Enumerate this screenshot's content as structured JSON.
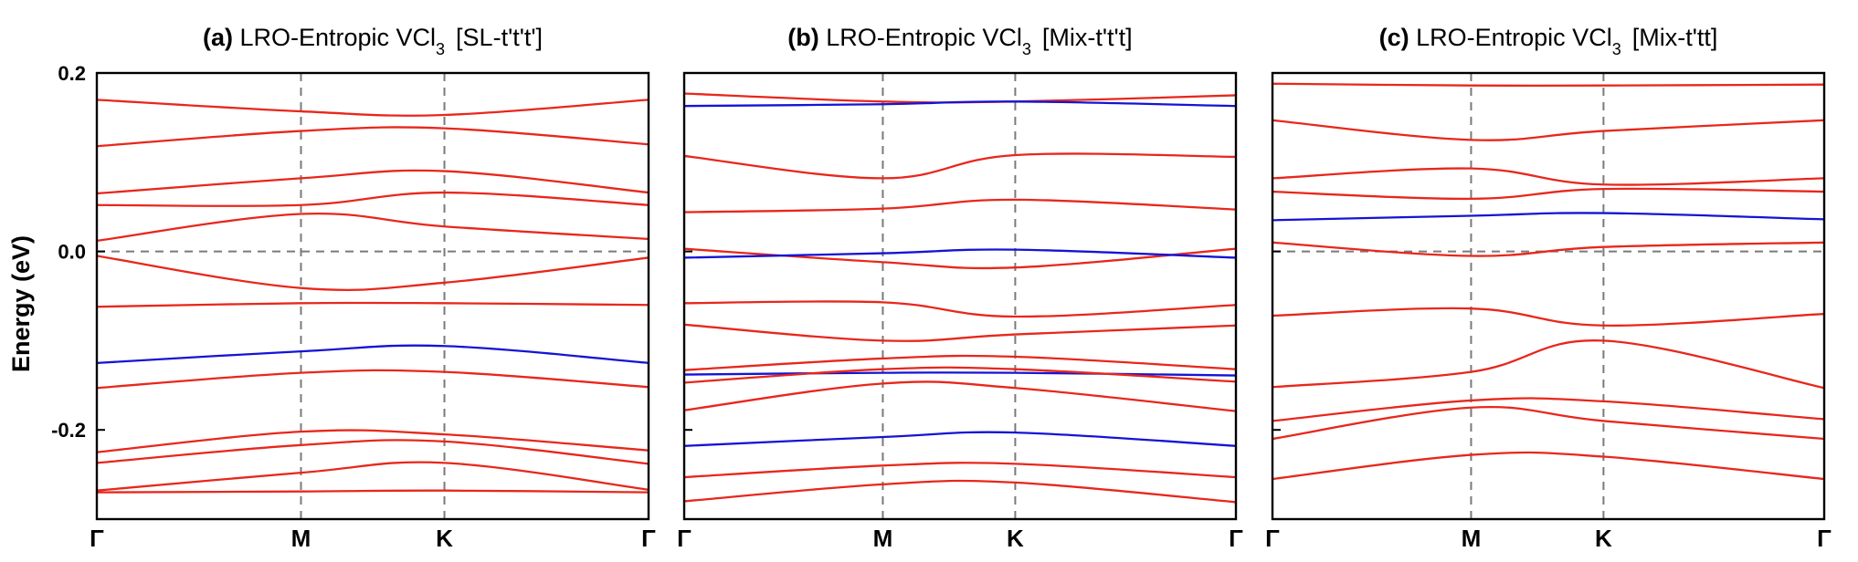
{
  "ylabel": "Energy (eV)",
  "colors": {
    "band": "#e8271c",
    "highlight": "#1414d6",
    "guide": "#7a7a7a",
    "frame": "#000000"
  },
  "chart_data": [
    {
      "type": "line",
      "panel_tag": "(a)",
      "title": "LRO-Entropic VCl",
      "title_sub": "3",
      "title_suffix": "[SL-t't't']",
      "ylabel": "Energy (eV)",
      "x_tick_labels": [
        "Γ",
        "M",
        "K",
        "Γ"
      ],
      "y_ticks": [
        {
          "value": 0.2,
          "label": "0.2"
        },
        {
          "value": 0.0,
          "label": "0.0"
        },
        {
          "value": -0.2,
          "label": "-0.2"
        }
      ],
      "ylim": [
        -0.3,
        0.2
      ],
      "fermi_level": 0.0,
      "x": [
        0,
        0.37,
        0.63,
        1
      ],
      "bands": [
        {
          "color": "red",
          "values": [
            0.17,
            0.157,
            0.153,
            0.17
          ]
        },
        {
          "color": "red",
          "values": [
            0.118,
            0.135,
            0.138,
            0.12
          ]
        },
        {
          "color": "red",
          "values": [
            0.065,
            0.082,
            0.09,
            0.066
          ]
        },
        {
          "color": "red",
          "values": [
            0.052,
            0.052,
            0.066,
            0.052
          ]
        },
        {
          "color": "red",
          "values": [
            0.012,
            0.042,
            0.028,
            0.014
          ]
        },
        {
          "color": "red",
          "values": [
            -0.005,
            -0.041,
            -0.035,
            -0.007
          ]
        },
        {
          "color": "red",
          "values": [
            -0.062,
            -0.058,
            -0.058,
            -0.06
          ]
        },
        {
          "color": "blue",
          "values": [
            -0.125,
            -0.112,
            -0.106,
            -0.125
          ]
        },
        {
          "color": "red",
          "values": [
            -0.153,
            -0.136,
            -0.135,
            -0.152
          ]
        },
        {
          "color": "red",
          "values": [
            -0.225,
            -0.202,
            -0.205,
            -0.223
          ]
        },
        {
          "color": "red",
          "values": [
            -0.237,
            -0.217,
            -0.213,
            -0.238
          ]
        },
        {
          "color": "red",
          "values": [
            -0.268,
            -0.248,
            -0.237,
            -0.267
          ]
        },
        {
          "color": "red",
          "values": [
            -0.27,
            -0.269,
            -0.268,
            -0.27
          ]
        }
      ]
    },
    {
      "type": "line",
      "panel_tag": "(b)",
      "title": "LRO-Entropic VCl",
      "title_sub": "3",
      "title_suffix": "[Mix-t't't]",
      "x_tick_labels": [
        "Γ",
        "M",
        "K",
        "Γ"
      ],
      "ylim": [
        -0.3,
        0.2
      ],
      "x": [
        0,
        0.36,
        0.6,
        1
      ],
      "bands": [
        {
          "color": "red",
          "values": [
            0.177,
            0.168,
            0.168,
            0.175
          ]
        },
        {
          "color": "blue",
          "values": [
            0.163,
            0.165,
            0.168,
            0.163
          ]
        },
        {
          "color": "red",
          "values": [
            0.107,
            0.082,
            0.108,
            0.106
          ]
        },
        {
          "color": "red",
          "values": [
            0.044,
            0.048,
            0.058,
            0.047
          ]
        },
        {
          "color": "red",
          "values": [
            0.003,
            -0.012,
            -0.018,
            0.003
          ]
        },
        {
          "color": "blue",
          "values": [
            -0.007,
            -0.002,
            0.002,
            -0.007
          ]
        },
        {
          "color": "red",
          "values": [
            -0.058,
            -0.057,
            -0.073,
            -0.06
          ]
        },
        {
          "color": "red",
          "values": [
            -0.082,
            -0.1,
            -0.093,
            -0.083
          ]
        },
        {
          "color": "red",
          "values": [
            -0.133,
            -0.12,
            -0.118,
            -0.132
          ]
        },
        {
          "color": "blue",
          "values": [
            -0.138,
            -0.136,
            -0.136,
            -0.139
          ]
        },
        {
          "color": "red",
          "values": [
            -0.147,
            -0.132,
            -0.132,
            -0.146
          ]
        },
        {
          "color": "red",
          "values": [
            -0.178,
            -0.148,
            -0.153,
            -0.179
          ]
        },
        {
          "color": "blue",
          "values": [
            -0.218,
            -0.208,
            -0.203,
            -0.218
          ]
        },
        {
          "color": "red",
          "values": [
            -0.253,
            -0.24,
            -0.238,
            -0.253
          ]
        },
        {
          "color": "red",
          "values": [
            -0.28,
            -0.261,
            -0.259,
            -0.281
          ]
        }
      ]
    },
    {
      "type": "line",
      "panel_tag": "(c)",
      "title": "LRO-Entropic VCl",
      "title_sub": "3",
      "title_suffix": "[Mix-t'tt]",
      "x_tick_labels": [
        "Γ",
        "M",
        "K",
        "Γ"
      ],
      "ylim": [
        -0.3,
        0.2
      ],
      "x": [
        0,
        0.36,
        0.6,
        1
      ],
      "bands": [
        {
          "color": "red",
          "values": [
            0.188,
            0.186,
            0.186,
            0.187
          ]
        },
        {
          "color": "red",
          "values": [
            0.147,
            0.125,
            0.135,
            0.147
          ]
        },
        {
          "color": "red",
          "values": [
            0.082,
            0.093,
            0.075,
            0.082
          ]
        },
        {
          "color": "red",
          "values": [
            0.067,
            0.059,
            0.07,
            0.067
          ]
        },
        {
          "color": "blue",
          "values": [
            0.035,
            0.04,
            0.043,
            0.036
          ]
        },
        {
          "color": "red",
          "values": [
            0.01,
            -0.005,
            0.005,
            0.01
          ]
        },
        {
          "color": "red",
          "values": [
            -0.072,
            -0.064,
            -0.083,
            -0.07
          ]
        },
        {
          "color": "red",
          "values": [
            -0.152,
            -0.135,
            -0.1,
            -0.153
          ]
        },
        {
          "color": "red",
          "values": [
            -0.19,
            -0.167,
            -0.168,
            -0.188
          ]
        },
        {
          "color": "red",
          "values": [
            -0.21,
            -0.175,
            -0.19,
            -0.21
          ]
        },
        {
          "color": "red",
          "values": [
            -0.255,
            -0.228,
            -0.23,
            -0.255
          ]
        }
      ]
    }
  ]
}
